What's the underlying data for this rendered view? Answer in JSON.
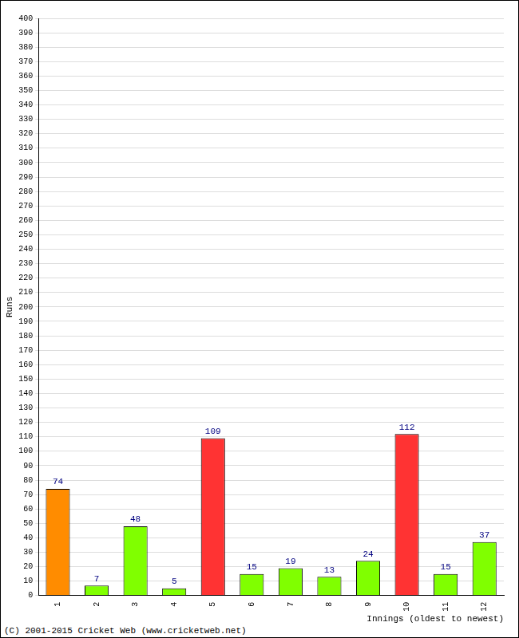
{
  "chart_data": {
    "type": "bar",
    "categories": [
      "1",
      "2",
      "3",
      "4",
      "5",
      "6",
      "7",
      "8",
      "9",
      "10",
      "11",
      "12"
    ],
    "values": [
      74,
      7,
      48,
      5,
      109,
      15,
      19,
      13,
      24,
      112,
      15,
      37
    ],
    "colors": [
      "#ff8c00",
      "#80ff00",
      "#80ff00",
      "#80ff00",
      "#ff3333",
      "#80ff00",
      "#80ff00",
      "#80ff00",
      "#80ff00",
      "#ff3333",
      "#80ff00",
      "#80ff00"
    ],
    "x_label": "Innings (oldest to newest)",
    "y_label": "Runs",
    "annotations": [
      "(C) 2001-2015 Cricket Web (www.cricketweb.net)"
    ],
    "ylim": [
      0,
      400
    ],
    "yticks": [
      0,
      10,
      20,
      30,
      40,
      50,
      60,
      70,
      80,
      90,
      100,
      110,
      120,
      130,
      140,
      150,
      160,
      170,
      180,
      190,
      200,
      210,
      220,
      230,
      240,
      250,
      260,
      270,
      280,
      290,
      300,
      310,
      320,
      330,
      340,
      350,
      360,
      370,
      380,
      390,
      400
    ],
    "grid": true,
    "data_labels": true
  }
}
